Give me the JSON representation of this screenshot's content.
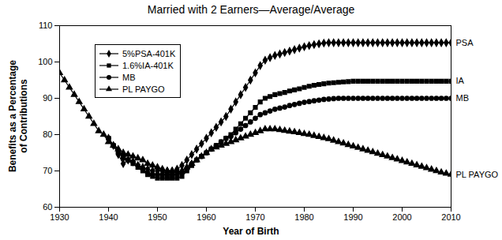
{
  "chart_data": {
    "type": "line",
    "title": "Married with 2 Earners—Average/Average",
    "x_label": "Year of Birth",
    "y_label": "Benefits as a Percentage\nof Contributions",
    "xlim": [
      1930,
      2010
    ],
    "xticks": [
      1930,
      1940,
      1950,
      1960,
      1970,
      1980,
      1990,
      2000,
      2010
    ],
    "ylim": [
      60,
      110
    ],
    "yticks": [
      60,
      70,
      80,
      90,
      100,
      110
    ],
    "grid": false,
    "legend": "upper left",
    "x": [
      1930,
      1931,
      1932,
      1933,
      1934,
      1935,
      1936,
      1937,
      1938,
      1939,
      1940,
      1941,
      1942,
      1943,
      1944,
      1945,
      1946,
      1947,
      1948,
      1949,
      1950,
      1951,
      1952,
      1953,
      1954,
      1955,
      1956,
      1957,
      1958,
      1959,
      1960,
      1961,
      1962,
      1963,
      1964,
      1965,
      1966,
      1967,
      1968,
      1969,
      1970,
      1971,
      1972,
      1973,
      1974,
      1975,
      1976,
      1977,
      1978,
      1979,
      1980,
      1981,
      1982,
      1983,
      1984,
      1985,
      1986,
      1987,
      1988,
      1989,
      1990,
      1991,
      1992,
      1993,
      1994,
      1995,
      1996,
      1997,
      1998,
      1999,
      2000,
      2001,
      2002,
      2003,
      2004,
      2005,
      2006,
      2007,
      2008,
      2009,
      2010
    ],
    "series": [
      {
        "name": "5%PSA-401K",
        "end_label": "PSA",
        "color": "#000000",
        "marker": "diamond",
        "line_style": "solid",
        "values": [
          null,
          null,
          null,
          null,
          null,
          null,
          null,
          null,
          null,
          null,
          79,
          77,
          74.5,
          72,
          73,
          72.5,
          71.5,
          71,
          70.5,
          70,
          70,
          70,
          70,
          70,
          70.5,
          71.5,
          73,
          74.5,
          76,
          77.5,
          79,
          80.5,
          82,
          83.5,
          85,
          87,
          89,
          91,
          93,
          95,
          97,
          99,
          100.5,
          101.2,
          101.8,
          102.2,
          102.6,
          103,
          103.4,
          103.8,
          104.2,
          104.5,
          104.8,
          105,
          105.2,
          105.3,
          105.3,
          105.3,
          105.3,
          105.3,
          105.3,
          105.3,
          105.3,
          105.3,
          105.3,
          105.3,
          105.3,
          105.3,
          105.3,
          105.3,
          105.3,
          105.3,
          105.3,
          105.3,
          105.3,
          105.3,
          105.3,
          105.3,
          105.3,
          105.3,
          105.3
        ]
      },
      {
        "name": "1.6%IA-401K",
        "end_label": "IA",
        "color": "#000000",
        "marker": "square",
        "line_style": "solid",
        "values": [
          null,
          null,
          null,
          null,
          null,
          null,
          null,
          null,
          null,
          null,
          79,
          77,
          75,
          73.5,
          73,
          72,
          71,
          70,
          69,
          68.5,
          68,
          68,
          68,
          68,
          68,
          68.5,
          70,
          71.5,
          73,
          74,
          75,
          76,
          77,
          78,
          79,
          80,
          81.5,
          83,
          84.5,
          86,
          87.5,
          89,
          90,
          90.5,
          91,
          91.3,
          91.6,
          92,
          92.3,
          92.6,
          93,
          93.3,
          93.6,
          93.8,
          94,
          94.2,
          94.3,
          94.4,
          94.5,
          94.6,
          94.7,
          94.7,
          94.7,
          94.7,
          94.7,
          94.7,
          94.7,
          94.7,
          94.7,
          94.7,
          94.7,
          94.7,
          94.7,
          94.7,
          94.7,
          94.7,
          94.7,
          94.7,
          94.7,
          94.7,
          94.7
        ]
      },
      {
        "name": "MB",
        "end_label": "MB",
        "color": "#000000",
        "marker": "circle",
        "line_style": "solid",
        "values": [
          null,
          null,
          null,
          null,
          null,
          null,
          null,
          null,
          null,
          null,
          79,
          77,
          75,
          74,
          73,
          72.5,
          71.5,
          70.5,
          69.5,
          69,
          69,
          69,
          69,
          69,
          69,
          69.5,
          70.5,
          72,
          73,
          74,
          75,
          76,
          77,
          78,
          79,
          79.5,
          80.5,
          81.5,
          82.5,
          83.5,
          84.5,
          85.5,
          86,
          86.5,
          87,
          87.3,
          87.6,
          88,
          88.3,
          88.6,
          88.9,
          89.1,
          89.3,
          89.5,
          89.7,
          89.8,
          89.9,
          90,
          90,
          90,
          90,
          90,
          90,
          90,
          90,
          90,
          90,
          90,
          90,
          90,
          90,
          90,
          90,
          90,
          90,
          90,
          90,
          90,
          90,
          90,
          90
        ]
      },
      {
        "name": "PL PAYGO",
        "end_label": "PL PAYGO",
        "color": "#000000",
        "marker": "triangle",
        "line_style": "solid",
        "values": [
          97,
          95,
          93,
          91,
          89,
          87,
          85,
          83,
          81,
          80,
          78,
          77,
          76,
          75,
          74.5,
          74,
          73.5,
          73,
          72,
          71.5,
          71,
          70.5,
          70,
          70,
          70,
          70,
          71,
          72,
          73,
          74,
          75,
          76,
          76.5,
          77,
          77.5,
          78,
          78.5,
          79,
          79.5,
          80,
          80.5,
          81,
          81.5,
          81.5,
          81.5,
          81.3,
          81.1,
          80.9,
          80.7,
          80.5,
          80.2,
          80,
          79.7,
          79.4,
          79.1,
          78.8,
          78.4,
          78,
          77.6,
          77.2,
          76.8,
          76.4,
          76,
          75.6,
          75.2,
          74.8,
          74.4,
          74,
          73.6,
          73.2,
          72.8,
          72.4,
          72,
          71.6,
          71.2,
          70.8,
          70.4,
          70,
          69.6,
          69.3,
          69
        ]
      }
    ]
  }
}
